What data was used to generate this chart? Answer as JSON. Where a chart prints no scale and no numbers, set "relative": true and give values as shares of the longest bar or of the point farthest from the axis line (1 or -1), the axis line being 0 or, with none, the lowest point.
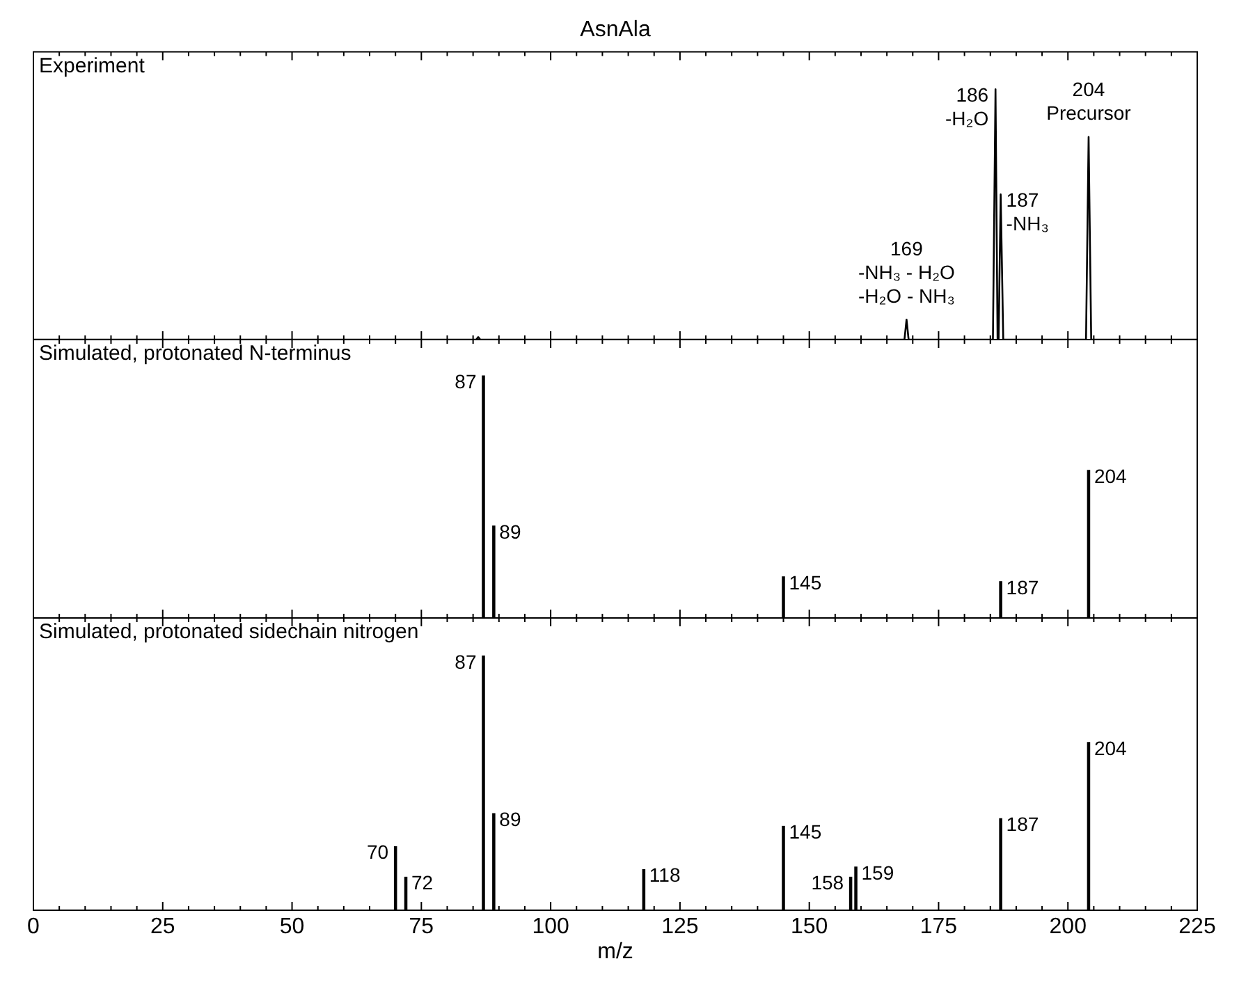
{
  "chart_data": [
    {
      "type": "line",
      "title": "AsnAla",
      "subtitle": "Experiment",
      "relative": true,
      "color": "#000000",
      "marker": "none",
      "tick_labels": false,
      "grid": false,
      "xlim": [
        0,
        225
      ],
      "xticks": [
        {
          "value": 0,
          "label": null
        },
        {
          "value": 25,
          "label": null
        },
        {
          "value": 50,
          "label": null
        },
        {
          "value": 75,
          "label": null
        },
        {
          "value": 100,
          "label": null
        },
        {
          "value": 125,
          "label": null
        },
        {
          "value": 150,
          "label": null
        },
        {
          "value": 175,
          "label": null
        },
        {
          "value": 200,
          "label": null
        },
        {
          "value": 225,
          "label": null
        }
      ],
      "x": [
        0,
        85.6,
        86,
        86.4,
        168.4,
        168.8,
        169.2,
        185.5,
        186,
        186.4,
        186.6,
        187,
        187.5,
        203.5,
        204,
        204.5,
        225
      ],
      "values": [
        0,
        0,
        0.01,
        0,
        0,
        0.08,
        0,
        0,
        1,
        0,
        0,
        0.58,
        0,
        0,
        0.81,
        0,
        0
      ],
      "annotations": [
        {
          "text": "186\n-H₂O",
          "x": 186,
          "y": 1
        },
        {
          "text": "187\n-NH₃",
          "x": 187,
          "y": 0.58
        },
        {
          "text": "204\nPrecursor",
          "x": 204,
          "y": 0.81
        },
        {
          "text": "169\n-NH₃ - H₂O\n-H₂O - NH₃",
          "x": 168.8,
          "y": 0.08
        }
      ]
    },
    {
      "type": "bar",
      "subtitle": "Simulated, protonated N-terminus",
      "relative": true,
      "color": "#000000",
      "tick_labels": false,
      "grid": false,
      "xlim": [
        0,
        225
      ],
      "xticks": [
        {
          "value": 0,
          "label": null
        },
        {
          "value": 25,
          "label": null
        },
        {
          "value": 50,
          "label": null
        },
        {
          "value": 75,
          "label": null
        },
        {
          "value": 100,
          "label": null
        },
        {
          "value": 125,
          "label": null
        },
        {
          "value": 150,
          "label": null
        },
        {
          "value": 175,
          "label": null
        },
        {
          "value": 200,
          "label": null
        },
        {
          "value": 225,
          "label": null
        }
      ],
      "x": [
        87,
        89,
        145,
        187,
        204
      ],
      "values": [
        1,
        0.38,
        0.17,
        0.15,
        0.61
      ],
      "annotations": [
        {
          "text": "87",
          "x": 87,
          "y": 1
        },
        {
          "text": "89",
          "x": 89,
          "y": 0.38
        },
        {
          "text": "145",
          "x": 145,
          "y": 0.17
        },
        {
          "text": "187",
          "x": 187,
          "y": 0.15
        },
        {
          "text": "204",
          "x": 204,
          "y": 0.61
        }
      ]
    },
    {
      "type": "bar",
      "subtitle": "Simulated, protonated sidechain nitrogen",
      "xlabel": "m/z",
      "relative": true,
      "color": "#000000",
      "tick_labels": "x",
      "grid": false,
      "xlim": [
        0,
        225
      ],
      "xticks": [
        0,
        25,
        50,
        75,
        100,
        125,
        150,
        175,
        200,
        225
      ],
      "x": [
        70,
        72,
        87,
        89,
        118,
        145,
        158,
        159,
        187,
        204
      ],
      "values": [
        0.25,
        0.13,
        1,
        0.38,
        0.16,
        0.33,
        0.13,
        0.17,
        0.36,
        0.66
      ],
      "annotations": [
        {
          "text": "70",
          "x": 70,
          "y": 0.25
        },
        {
          "text": "72",
          "x": 72,
          "y": 0.13
        },
        {
          "text": "87",
          "x": 87,
          "y": 1
        },
        {
          "text": "89",
          "x": 89,
          "y": 0.38
        },
        {
          "text": "118",
          "x": 118,
          "y": 0.16
        },
        {
          "text": "145",
          "x": 145,
          "y": 0.33
        },
        {
          "text": "158",
          "x": 158,
          "y": 0.13
        },
        {
          "text": "159",
          "x": 159,
          "y": 0.17
        },
        {
          "text": "187",
          "x": 187,
          "y": 0.36
        },
        {
          "text": "204",
          "x": 204,
          "y": 0.66
        }
      ]
    }
  ]
}
